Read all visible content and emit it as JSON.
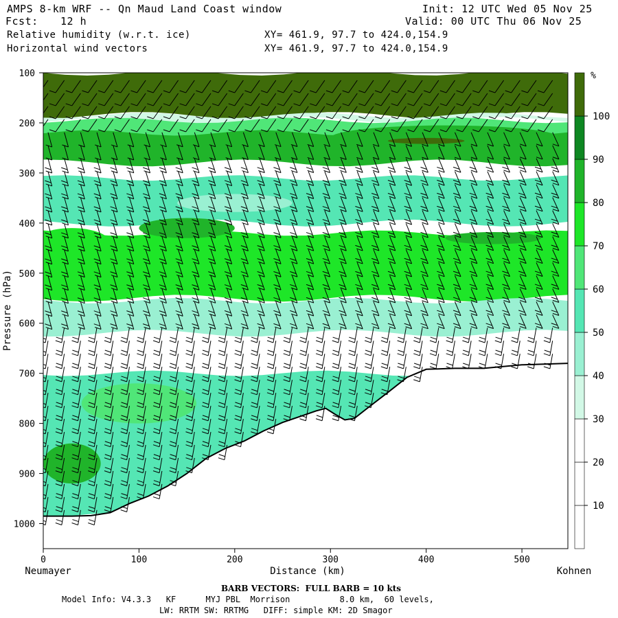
{
  "header": {
    "title": "AMPS 8-km WRF -- Qn Maud Land Coast window",
    "fcst_label": "Fcst:",
    "fcst_value": "12 h",
    "init": "Init: 12 UTC Wed 05 Nov 25",
    "valid": "Valid: 00 UTC Thu 06 Nov 25",
    "field1": "Relative humidity (w.r.t. ice)",
    "field2": "Horizontal wind vectors",
    "xy1": "XY= 461.9, 97.7 to 424.0,154.9",
    "xy2": "XY= 461.9, 97.7 to 424.0,154.9"
  },
  "chart_data": {
    "type": "heatmap",
    "title": "Relative humidity (w.r.t. ice) cross-section with horizontal wind barbs",
    "xlabel": "Distance (km)",
    "ylabel": "Pressure (hPa)",
    "xlim": [
      0,
      548
    ],
    "ylim": [
      1050,
      100
    ],
    "x_ticks": [
      0,
      100,
      200,
      300,
      400,
      500
    ],
    "y_ticks": [
      100,
      200,
      300,
      400,
      500,
      600,
      700,
      800,
      900,
      1000
    ],
    "left_endpoint_label": "Neumayer",
    "right_endpoint_label": "Kohnen",
    "colorbar": {
      "unit": "%",
      "levels": [
        10,
        20,
        30,
        40,
        50,
        60,
        70,
        80,
        90,
        100
      ],
      "colors": [
        "#ffffff",
        "#ffffff",
        "#ffffff",
        "#d2f8e6",
        "#9af0d2",
        "#55e6b4",
        "#50e678",
        "#1ee628",
        "#20b42a",
        "#0e8722",
        "#3f6b0a"
      ]
    },
    "terrain_profile": {
      "distance_km": [
        0,
        30,
        50,
        70,
        90,
        110,
        130,
        150,
        170,
        190,
        210,
        230,
        250,
        270,
        285,
        295,
        305,
        315,
        325,
        335,
        345,
        360,
        380,
        400,
        430,
        460,
        500,
        548
      ],
      "surface_pressure_hPa": [
        985,
        985,
        984,
        978,
        960,
        945,
        925,
        900,
        870,
        850,
        835,
        815,
        798,
        785,
        775,
        770,
        782,
        793,
        790,
        775,
        760,
        738,
        708,
        692,
        690,
        690,
        683,
        680
      ]
    },
    "rh_bands": [
      {
        "level": "100",
        "color": "#3f6b0a",
        "top_hPa": 100,
        "bottom_hPa": 185
      },
      {
        "level": "30-40",
        "color": "#d2f8e6",
        "top_hPa": 185,
        "bottom_hPa": 195
      },
      {
        "level": "60-70",
        "color": "#50e678",
        "top_hPa": 195,
        "bottom_hPa": 270
      },
      {
        "level": "80-90",
        "color": "#20b42a",
        "top_hPa": 220,
        "bottom_hPa": 280
      },
      {
        "level": "50-60",
        "color": "#55e6b4",
        "top_hPa": 310,
        "bottom_hPa": 400
      },
      {
        "level": "70-80",
        "color": "#1ee628",
        "top_hPa": 420,
        "bottom_hPa": 550
      },
      {
        "level": "40-50",
        "color": "#9af0d2",
        "top_hPa": 555,
        "bottom_hPa": 620
      },
      {
        "level": "50-60",
        "color": "#55e6b4",
        "top_hPa": 700,
        "bottom_hPa": 985
      }
    ],
    "barb_note": "BARB VECTORS:  FULL BARB = 10 kts"
  },
  "footer": {
    "model_info": "Model Info: V4.3.3   KF      MYJ PBL  Morrison          8.0 km,  60 levels,",
    "physics": "LW: RRTM SW: RRTMG   DIFF: simple KM: 2D Smagor"
  }
}
